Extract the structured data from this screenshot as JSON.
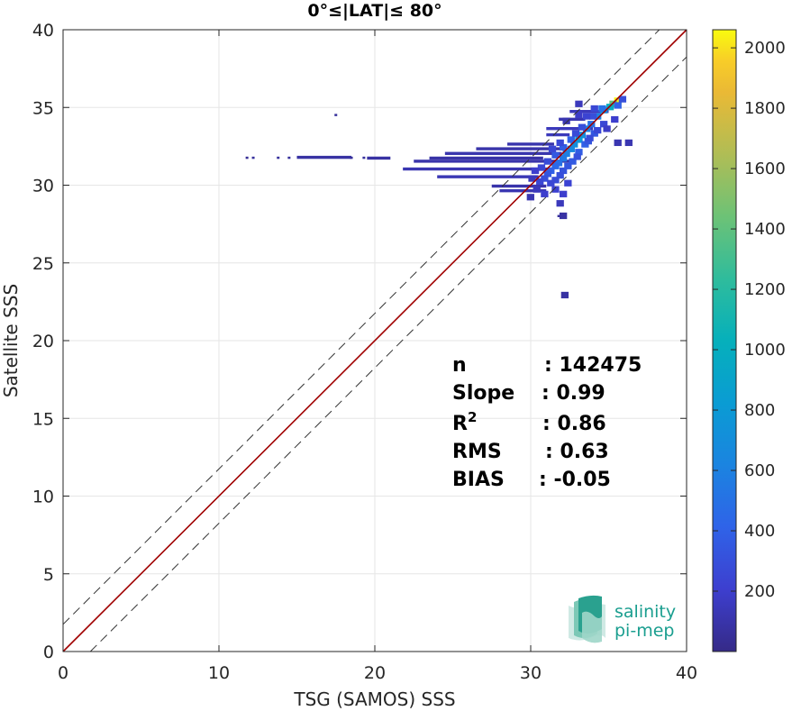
{
  "chart_data": {
    "type": "heatmap",
    "title": "0°≤|LAT|≤ 80°",
    "xlabel": "TSG (SAMOS) SSS",
    "ylabel": "Satellite SSS",
    "xlim": [
      0,
      40
    ],
    "ylim": [
      0,
      40
    ],
    "xticks": [
      "0",
      "10",
      "20",
      "30",
      "40"
    ],
    "yticks": [
      "0",
      "5",
      "10",
      "15",
      "20",
      "25",
      "30",
      "35",
      "40"
    ],
    "grid": true,
    "colorbar": {
      "range": [
        0,
        2060
      ],
      "ticks": [
        "200",
        "400",
        "600",
        "800",
        "1000",
        "1200",
        "1400",
        "1600",
        "1800",
        "2000"
      ],
      "tick_values": [
        200,
        400,
        600,
        800,
        1000,
        1200,
        1400,
        1600,
        1800,
        2000
      ],
      "colormap": "parula"
    },
    "reference_lines": [
      {
        "name": "1:1",
        "style": "solid",
        "color": "#a00000",
        "intercept": 0
      },
      {
        "style": "dashed",
        "color": "#333333",
        "intercept": 1.75
      },
      {
        "style": "dashed",
        "color": "#333333",
        "intercept": -1.75
      }
    ],
    "stats": [
      {
        "label": "n",
        "value": ": 142475"
      },
      {
        "label": "Slope",
        "value": ": 0.99"
      },
      {
        "label": "R",
        "sup": "2",
        "value": ": 0.86"
      },
      {
        "label": "RMS",
        "value": ": 0.63"
      },
      {
        "label": "BIAS",
        "value": ": -0.05"
      }
    ],
    "density_cells": [
      [
        35.5,
        35.5,
        2050
      ],
      [
        35.2,
        35.3,
        1400
      ],
      [
        35.0,
        35.1,
        1000
      ],
      [
        34.6,
        34.9,
        700
      ],
      [
        34.2,
        34.5,
        600
      ],
      [
        34.5,
        35.0,
        500
      ],
      [
        35.5,
        35.2,
        400
      ],
      [
        35.8,
        35.6,
        300
      ],
      [
        33.8,
        34.0,
        500
      ],
      [
        33.5,
        33.7,
        600
      ],
      [
        33.2,
        33.3,
        700
      ],
      [
        33.0,
        33.0,
        800
      ],
      [
        32.7,
        32.7,
        700
      ],
      [
        32.5,
        32.4,
        650
      ],
      [
        32.2,
        32.1,
        600
      ],
      [
        32.0,
        31.8,
        550
      ],
      [
        31.7,
        31.5,
        500
      ],
      [
        31.5,
        31.3,
        450
      ],
      [
        31.2,
        31.0,
        400
      ],
      [
        31.0,
        30.8,
        350
      ],
      [
        30.8,
        30.5,
        300
      ],
      [
        30.5,
        30.3,
        250
      ],
      [
        33.4,
        32.7,
        400
      ],
      [
        33.0,
        32.2,
        380
      ],
      [
        32.6,
        31.6,
        360
      ],
      [
        32.3,
        31.3,
        340
      ],
      [
        32.0,
        31.0,
        320
      ],
      [
        31.8,
        30.7,
        300
      ],
      [
        31.5,
        30.4,
        280
      ],
      [
        34.0,
        33.4,
        350
      ],
      [
        33.6,
        32.9,
        330
      ],
      [
        32.9,
        31.9,
        310
      ],
      [
        32.5,
        33.0,
        400
      ],
      [
        32.0,
        32.5,
        380
      ],
      [
        31.5,
        32.0,
        350
      ],
      [
        33.2,
        33.8,
        300
      ],
      [
        33.9,
        34.5,
        300
      ],
      [
        31.0,
        31.6,
        280
      ],
      [
        30.6,
        31.2,
        250
      ],
      [
        31.2,
        30.2,
        250
      ],
      [
        31.5,
        29.8,
        220
      ],
      [
        32.0,
        29.5,
        200
      ],
      [
        30.8,
        29.5,
        200
      ],
      [
        32.3,
        30.2,
        230
      ],
      [
        34.6,
        34.0,
        250
      ],
      [
        34.2,
        33.6,
        260
      ],
      [
        33.7,
        33.1,
        280
      ],
      [
        31.3,
        32.4,
        250
      ],
      [
        31.8,
        32.8,
        260
      ],
      [
        32.8,
        33.4,
        270
      ],
      [
        34.0,
        35.0,
        250
      ],
      [
        33.5,
        34.5,
        230
      ],
      [
        33.0,
        35.3,
        150
      ],
      [
        30.2,
        31.0,
        200
      ],
      [
        30.0,
        30.5,
        150
      ],
      [
        30.3,
        29.8,
        150
      ],
      [
        29.9,
        29.3,
        120
      ],
      [
        31.8,
        28.9,
        150
      ],
      [
        32.0,
        28.1,
        80
      ],
      [
        32.1,
        23.0,
        80
      ],
      [
        36.2,
        32.8,
        120
      ],
      [
        35.5,
        32.8,
        120
      ],
      [
        33.0,
        34.6,
        180
      ],
      [
        32.2,
        34.2,
        120
      ],
      [
        34.8,
        33.7,
        180
      ],
      [
        35.3,
        34.3,
        200
      ]
    ],
    "density_streaks": [
      {
        "x0": 21.8,
        "x1": 31.5,
        "y": 31.0,
        "count": 120
      },
      {
        "x0": 24.0,
        "x1": 30.5,
        "y": 30.5,
        "count": 130
      },
      {
        "x0": 22.5,
        "x1": 32.5,
        "y": 31.5,
        "count": 100
      },
      {
        "x0": 24.5,
        "x1": 32.0,
        "y": 32.0,
        "count": 110
      },
      {
        "x0": 26.5,
        "x1": 32.0,
        "y": 32.3,
        "count": 100
      },
      {
        "x0": 28.5,
        "x1": 31.5,
        "y": 32.6,
        "count": 110
      },
      {
        "x0": 23.5,
        "x1": 30.8,
        "y": 31.7,
        "count": 90
      },
      {
        "x0": 28.0,
        "x1": 31.0,
        "y": 29.6,
        "count": 120
      },
      {
        "x0": 27.5,
        "x1": 31.0,
        "y": 29.9,
        "count": 100
      },
      {
        "x0": 19.5,
        "x1": 21.0,
        "y": 31.7,
        "count": 80
      },
      {
        "x0": 15.0,
        "x1": 18.5,
        "y": 31.75,
        "count": 80
      },
      {
        "x0": 31.0,
        "x1": 34.0,
        "y": 33.6,
        "count": 150
      },
      {
        "x0": 32.5,
        "x1": 35.0,
        "y": 34.7,
        "count": 150
      },
      {
        "x0": 31.8,
        "x1": 33.5,
        "y": 34.2,
        "count": 120
      },
      {
        "x0": 31.0,
        "x1": 32.5,
        "y": 33.2,
        "count": 150
      }
    ],
    "density_points": [
      [
        12.2,
        31.75,
        60
      ],
      [
        13.8,
        31.75,
        60
      ],
      [
        14.5,
        31.75,
        60
      ],
      [
        17.5,
        34.5,
        60
      ],
      [
        18.5,
        31.75,
        60
      ],
      [
        11.8,
        31.75,
        40
      ],
      [
        19.3,
        31.75,
        60
      ],
      [
        31.8,
        28.0,
        60
      ]
    ]
  },
  "logo": {
    "line1": "salinity",
    "line2": "pi-mep",
    "color": "#1a9e8f"
  }
}
